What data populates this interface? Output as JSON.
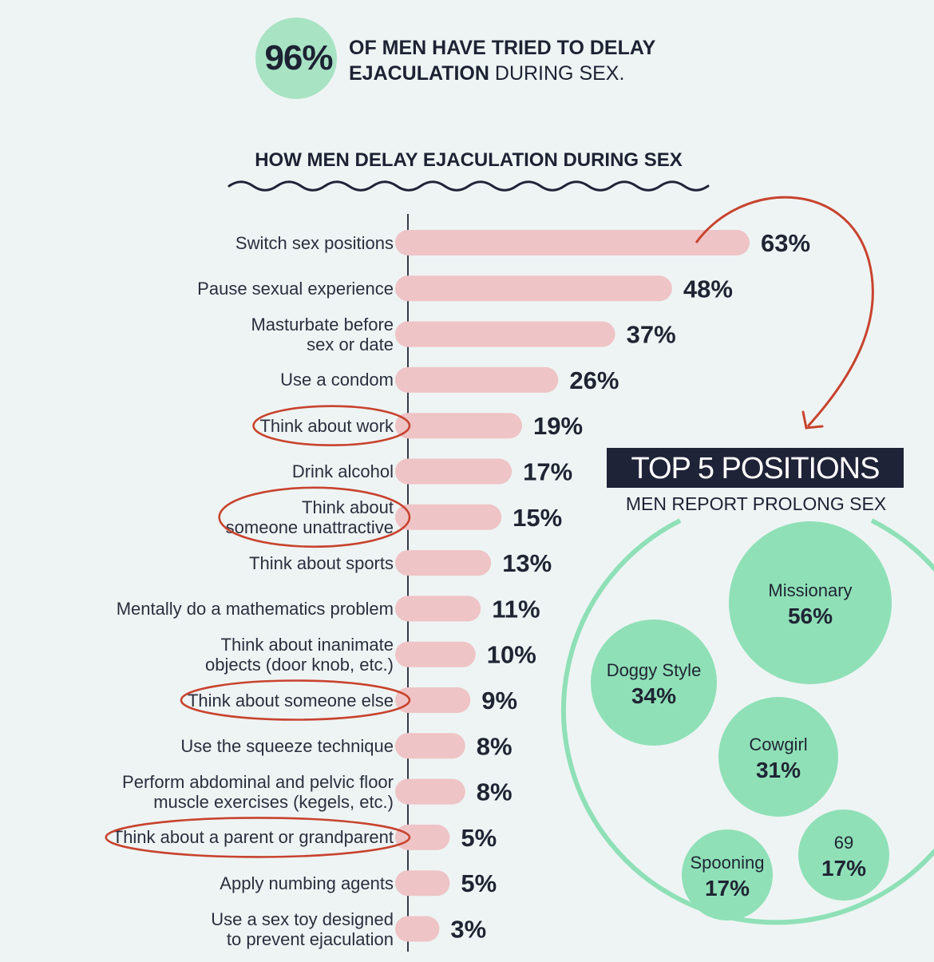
{
  "headline": {
    "percent": "96%",
    "line1": "OF MEN HAVE TRIED TO DELAY",
    "line2_strong": "EJACULATION",
    "line2_rest": "DURING SEX."
  },
  "colors": {
    "bar": "#efc4c6",
    "bubble": "#8fe0b7",
    "ring": "#8fe0b7",
    "annotation": "#c8432e",
    "dark": "#1f2337"
  },
  "chart_data": [
    {
      "type": "bar",
      "orientation": "horizontal",
      "title": "HOW MEN DELAY EJACULATION DURING SEX",
      "categories": [
        [
          "Switch sex positions"
        ],
        [
          "Pause sexual experience"
        ],
        [
          "Masturbate before",
          "sex or date"
        ],
        [
          "Use a condom"
        ],
        [
          "Think about work"
        ],
        [
          "Drink alcohol"
        ],
        [
          "Think about",
          "someone unattractive"
        ],
        [
          "Think about sports"
        ],
        [
          "Mentally do a mathematics problem"
        ],
        [
          "Think about inanimate",
          "objects (door knob, etc.)"
        ],
        [
          "Think about someone else"
        ],
        [
          "Use the squeeze technique"
        ],
        [
          "Perform abdominal and pelvic floor",
          "muscle exercises (kegels, etc.)"
        ],
        [
          "Think about a parent or grandparent"
        ],
        [
          "Apply numbing agents"
        ],
        [
          "Use a sex toy designed",
          "to prevent ejaculation"
        ]
      ],
      "values": [
        63,
        48,
        37,
        26,
        19,
        17,
        15,
        13,
        11,
        10,
        9,
        8,
        8,
        5,
        5,
        3
      ],
      "value_labels": [
        "63%",
        "48%",
        "37%",
        "26%",
        "19%",
        "17%",
        "15%",
        "13%",
        "11%",
        "10%",
        "9%",
        "8%",
        "8%",
        "5%",
        "5%",
        "3%"
      ],
      "annotated": [
        4,
        6,
        10,
        13
      ],
      "xlim": [
        0,
        63
      ]
    },
    {
      "type": "bubble",
      "title": "TOP 5 POSITIONS",
      "subtitle": "MEN REPORT PROLONG SEX",
      "items": [
        {
          "name": "Missionary",
          "value": 56,
          "label": "56%"
        },
        {
          "name": "Doggy Style",
          "value": 34,
          "label": "34%"
        },
        {
          "name": "Cowgirl",
          "value": 31,
          "label": "31%"
        },
        {
          "name": "Spooning",
          "value": 17,
          "label": "17%"
        },
        {
          "name": "69",
          "value": 17,
          "label": "17%"
        }
      ]
    }
  ]
}
